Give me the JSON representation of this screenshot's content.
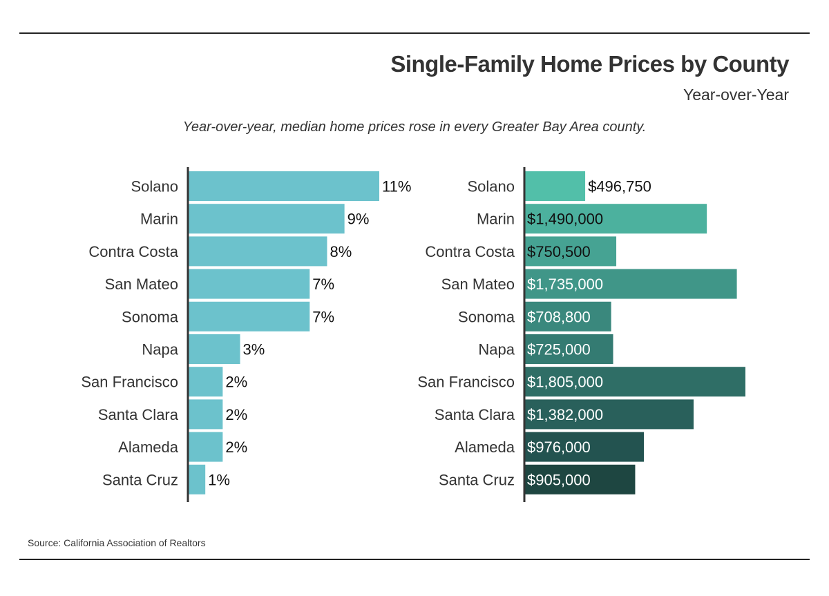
{
  "header": {
    "title": "Single-Family Home Prices by County",
    "subtitle": "Year-over-Year",
    "caption": "Year-over-year, median home prices rose in every Greater Bay Area county."
  },
  "footer": {
    "source": "Source:  California Association of Realtors"
  },
  "chart_data": [
    {
      "type": "bar",
      "orientation": "horizontal",
      "categories": [
        "Solano",
        "Marin",
        "Contra Costa",
        "San Mateo",
        "Sonoma",
        "Napa",
        "San Francisco",
        "Santa Clara",
        "Alameda",
        "Santa Cruz"
      ],
      "values": [
        11,
        9,
        8,
        7,
        7,
        3,
        2,
        2,
        2,
        1
      ],
      "value_labels": [
        "11%",
        "9%",
        "8%",
        "7%",
        "7%",
        "3%",
        "2%",
        "2%",
        "2%",
        "1%"
      ],
      "xlim": [
        0,
        11
      ],
      "grid": false,
      "color": "#6cc2cc"
    },
    {
      "type": "bar",
      "orientation": "horizontal",
      "categories": [
        "Solano",
        "Marin",
        "Contra Costa",
        "San Mateo",
        "Sonoma",
        "Napa",
        "San Francisco",
        "Santa Clara",
        "Alameda",
        "Santa Cruz"
      ],
      "values": [
        496750,
        1490000,
        750500,
        1735000,
        708800,
        725000,
        1805000,
        1382000,
        976000,
        905000
      ],
      "value_labels": [
        "$496,750",
        "$1,490,000",
        "$750,500",
        "$1,735,000",
        "$708,800",
        "$725,000",
        "$1,805,000",
        "$1,382,000",
        "$976,000",
        "$905,000"
      ],
      "xlim": [
        0,
        1805000
      ],
      "grid": false,
      "colors": [
        "#52bfa9",
        "#4cb19e",
        "#46a393",
        "#409688",
        "#3a887d",
        "#347b72",
        "#2f6e66",
        "#29605b",
        "#235350",
        "#1e4641"
      ]
    }
  ]
}
